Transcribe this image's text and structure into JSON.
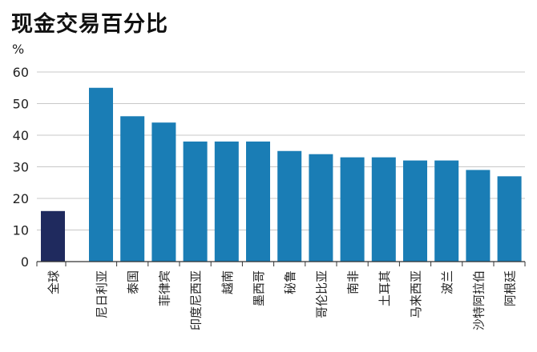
{
  "chart_data": {
    "type": "bar",
    "title": "现金交易百分比",
    "ylabel": "%",
    "ylim": [
      0,
      60
    ],
    "yticks": [
      0,
      10,
      20,
      30,
      40,
      50,
      60
    ],
    "grid": true,
    "categories": [
      "全球",
      "尼日利亚",
      "泰国",
      "菲律宾",
      "印度尼西亚",
      "越南",
      "墨西哥",
      "秘鲁",
      "哥伦比亚",
      "南非",
      "土耳其",
      "马来西亚",
      "波兰",
      "沙特阿拉伯",
      "阿根廷"
    ],
    "values": [
      16,
      55,
      46,
      44,
      38,
      38,
      38,
      35,
      34,
      33,
      33,
      32,
      32,
      29,
      27
    ],
    "colors": {
      "highlight": "#1f2a5e",
      "bar": "#1a7db5",
      "grid": "#c8c8c8",
      "axis": "#333333"
    }
  }
}
